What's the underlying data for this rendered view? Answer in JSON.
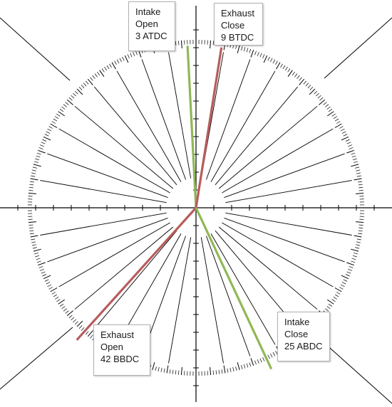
{
  "diagram": {
    "type": "valve-timing-diagram",
    "scale": {
      "degree_graduations": 360,
      "minor_every_deg": 1,
      "major_every_deg": 5,
      "radial_lines_every_deg": 10
    },
    "colors": {
      "intake": "#8fb856",
      "exhaust": "#b85c5c",
      "scale": "#000000"
    },
    "events": [
      {
        "id": "intake-open",
        "valve": "intake",
        "lines": [
          "Intake",
          "Open",
          "3 ATDC"
        ],
        "degrees": 3,
        "reference": "TDC",
        "side": "after"
      },
      {
        "id": "exhaust-close",
        "valve": "exhaust",
        "lines": [
          "Exhaust",
          "Close",
          "9 BTDC"
        ],
        "degrees": 9,
        "reference": "TDC",
        "side": "before"
      },
      {
        "id": "exhaust-open",
        "valve": "exhaust",
        "lines": [
          "Exhaust",
          "Open",
          "42 BBDC"
        ],
        "degrees": 42,
        "reference": "BDC",
        "side": "before"
      },
      {
        "id": "intake-close",
        "valve": "intake",
        "lines": [
          "Intake",
          "Close",
          "25 ABDC"
        ],
        "degrees": 25,
        "reference": "BDC",
        "side": "after"
      }
    ]
  }
}
